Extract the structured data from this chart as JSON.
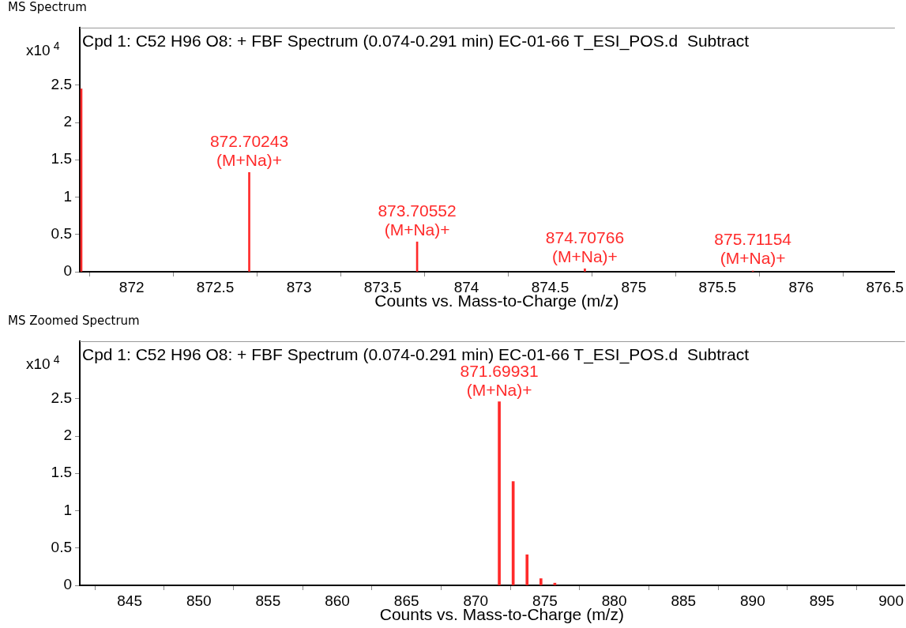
{
  "chart_data": [
    {
      "type": "bar",
      "title": "MS Spectrum",
      "subtitle": "Cpd 1: C52 H96 O8: + FBF Spectrum (0.074-0.291 min) EC-01-66 T_ESI_POS.d  Subtract",
      "xlabel": "Counts vs. Mass-to-Charge (m/z)",
      "ylabel": "x10$^{4}$",
      "x": [
        871.69931,
        872.70243,
        873.70552,
        874.70766,
        875.71154
      ],
      "values": [
        2.45,
        1.33,
        0.4,
        0.04,
        0.01
      ],
      "color": "#ff2a2a",
      "xlim": [
        871.69,
        876.56
      ],
      "xticks": [
        872,
        872.5,
        873,
        873.5,
        874,
        874.5,
        875,
        875.5,
        876,
        876.5
      ],
      "ylim": [
        0,
        3.27
      ],
      "yticks": [
        0,
        0.5,
        1,
        1.5,
        2,
        2.5
      ],
      "annotations": [
        {
          "text": "872.70243\n(M+Na)+",
          "x": 872.70243,
          "y": 1.33
        },
        {
          "text": "873.70552\n(M+Na)+",
          "x": 873.70552,
          "y": 0.4
        },
        {
          "text": "874.70766\n(M+Na)+",
          "x": 874.70766,
          "y": 0.04
        },
        {
          "text": "875.71154\n(M+Na)+",
          "x": 875.71154,
          "y": 0.01
        }
      ]
    },
    {
      "type": "bar",
      "title": "MS Zoomed Spectrum",
      "subtitle": "Cpd 1: C52 H96 O8: + FBF Spectrum (0.074-0.291 min) EC-01-66 T_ESI_POS.d  Subtract",
      "xlabel": "Counts vs. Mass-to-Charge (m/z)",
      "ylabel": "x10$^{4}$",
      "x": [
        871.69931,
        872.70243,
        873.70552,
        874.70766,
        875.71154
      ],
      "values": [
        2.46,
        1.39,
        0.41,
        0.09,
        0.03
      ],
      "color": "#ff2a2a",
      "xlim": [
        841.4,
        901
      ],
      "xticks": [
        845,
        850,
        855,
        860,
        865,
        870,
        875,
        880,
        885,
        890,
        895,
        900
      ],
      "ylim": [
        0,
        3.27
      ],
      "yticks": [
        0,
        0.5,
        1,
        1.5,
        2,
        2.5
      ],
      "annotations": [
        {
          "text": "871.69931\n(M+Na)+",
          "x": 871.69931,
          "y": 2.46
        }
      ]
    }
  ]
}
